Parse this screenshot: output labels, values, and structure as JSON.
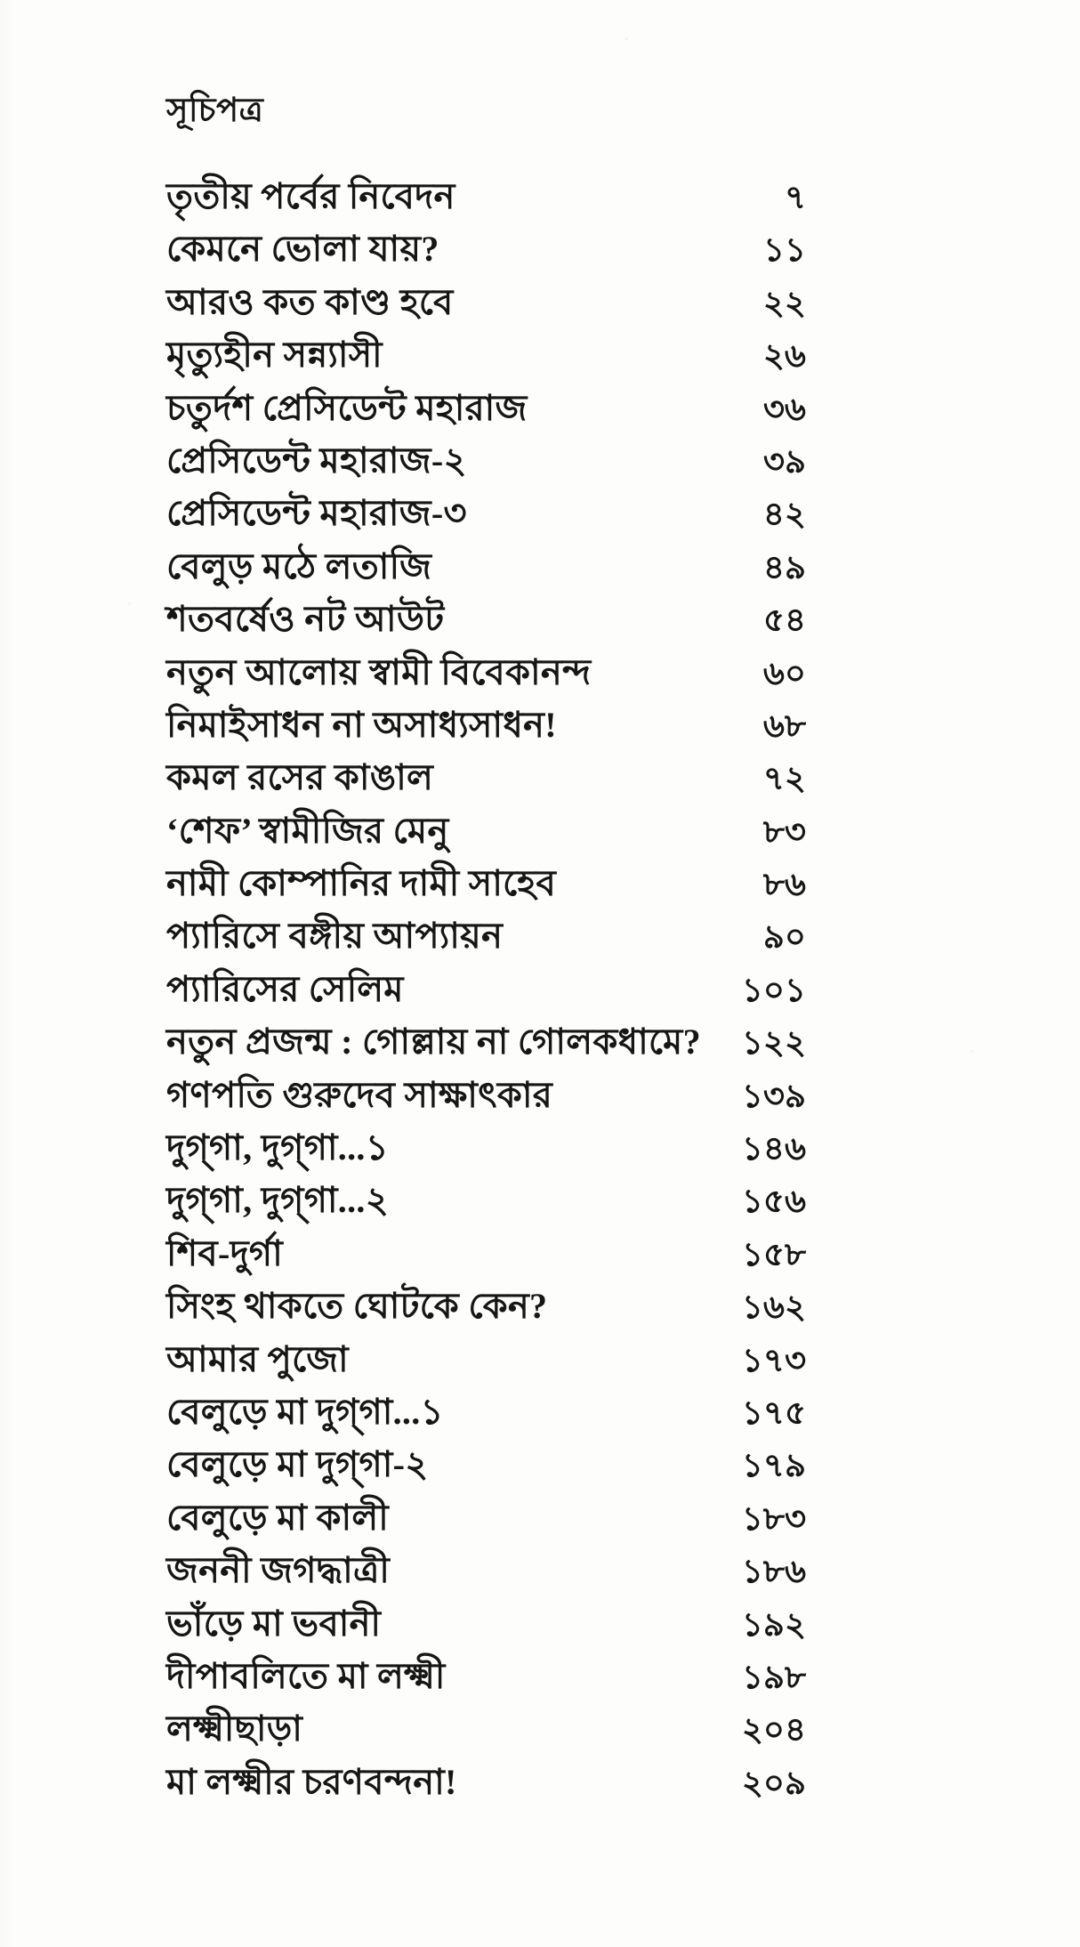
{
  "page": {
    "title": "সূচিপত্র"
  },
  "toc": {
    "entries": [
      {
        "title": "তৃতীয় পর্বের নিবেদন",
        "page": "৭"
      },
      {
        "title": "কেমনে ভোলা যায়?",
        "page": "১১"
      },
      {
        "title": "আরও কত কাণ্ড হবে",
        "page": "২২"
      },
      {
        "title": "মৃত্যুহীন সন্ন্যাসী",
        "page": "২৬"
      },
      {
        "title": "চতুর্দশ প্রেসিডেন্ট মহারাজ",
        "page": "৩৬"
      },
      {
        "title": "প্রেসিডেন্ট মহারাজ-২",
        "page": "৩৯"
      },
      {
        "title": "প্রেসিডেন্ট মহারাজ-৩",
        "page": "৪২"
      },
      {
        "title": "বেলুড় মঠে লতাজি",
        "page": "৪৯"
      },
      {
        "title": "শতবর্ষেও নট আউট",
        "page": "৫৪"
      },
      {
        "title": "নতুন আলোয় স্বামী বিবেকানন্দ",
        "page": "৬০"
      },
      {
        "title": "নিমাইসাধন না অসাধ্যসাধন!",
        "page": "৬৮"
      },
      {
        "title": "কমল রসের কাঙাল",
        "page": "৭২"
      },
      {
        "title": "‘শেফ’ স্বামীজির মেনু",
        "page": "৮৩"
      },
      {
        "title": "নামী কোম্পানির দামী সাহেব",
        "page": "৮৬"
      },
      {
        "title": "প্যারিসে বঙ্গীয় আপ্যায়ন",
        "page": "৯০"
      },
      {
        "title": "প্যারিসের সেলিম",
        "page": "১০১"
      },
      {
        "title": "নতুন প্রজন্ম : গোল্লায় না গোলকধামে?",
        "page": "১২২"
      },
      {
        "title": "গণপতি গুরুদেব সাক্ষাৎকার",
        "page": "১৩৯"
      },
      {
        "title": "দুগ্‌গা, দুগ্‌গা...১",
        "page": "১৪৬"
      },
      {
        "title": "দুগ্‌গা, দুগ্‌গা...২",
        "page": "১৫৬"
      },
      {
        "title": "শিব-দুর্গা",
        "page": "১৫৮"
      },
      {
        "title": "সিংহ থাকতে ঘোটকে কেন?",
        "page": "১৬২"
      },
      {
        "title": "আমার পুজো",
        "page": "১৭৩"
      },
      {
        "title": "বেলুড়ে মা দুগ্‌গা...১",
        "page": "১৭৫"
      },
      {
        "title": "বেলুড়ে মা দুগ্‌গা-২",
        "page": "১৭৯"
      },
      {
        "title": "বেলুড়ে মা কালী",
        "page": "১৮৩"
      },
      {
        "title": "জননী জগদ্ধাত্রী",
        "page": "১৮৬"
      },
      {
        "title": "ভাঁড়ে মা ভবানী",
        "page": "১৯২"
      },
      {
        "title": "দীপাবলিতে মা লক্ষ্মী",
        "page": "১৯৮"
      },
      {
        "title": "লক্ষ্মীছাড়া",
        "page": "২০৪"
      },
      {
        "title": "মা লক্ষ্মীর চরণবন্দনা!",
        "page": "২০৯"
      }
    ]
  },
  "colors": {
    "ink": "#161616",
    "paper": "#fdfdfb"
  }
}
